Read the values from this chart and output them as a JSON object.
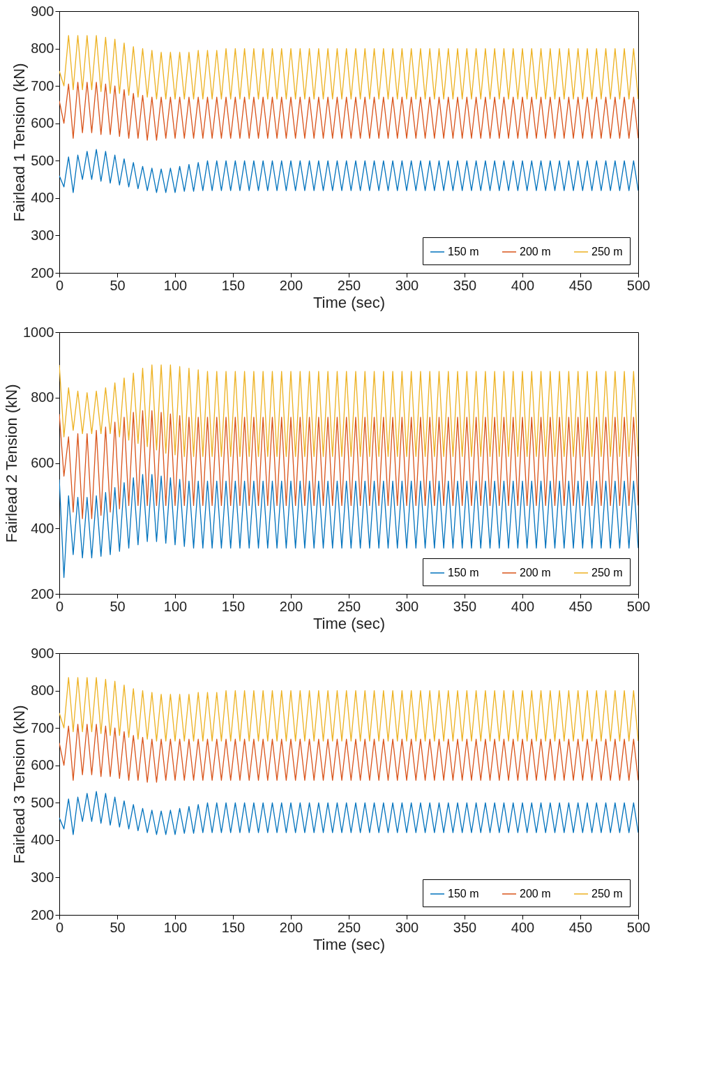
{
  "chart_data": [
    {
      "type": "line",
      "xlabel": "Time (sec)",
      "ylabel": "Fairlead 1 Tension (kN)",
      "xlim": [
        0,
        500
      ],
      "xticks": [
        0,
        50,
        100,
        150,
        200,
        250,
        300,
        350,
        400,
        450,
        500
      ],
      "ylim": [
        200,
        900
      ],
      "yticks": [
        200,
        300,
        400,
        500,
        600,
        700,
        800,
        900
      ],
      "grid": false,
      "legend": "bottom right",
      "x": [
        0,
        4,
        8,
        12,
        16,
        20,
        24,
        28,
        32,
        36,
        40,
        44,
        48,
        52,
        56,
        60,
        64,
        68,
        72,
        76,
        80,
        84,
        88,
        92,
        96,
        100,
        104,
        108,
        112,
        116,
        120,
        124,
        128,
        132,
        136,
        140,
        144,
        148,
        152,
        156,
        160,
        164,
        168,
        172,
        176,
        180,
        184,
        188,
        192,
        196,
        200,
        204,
        208,
        212,
        216,
        220,
        224,
        228,
        232,
        236,
        240,
        244,
        248,
        252,
        256,
        260,
        264,
        268,
        272,
        276,
        280,
        284,
        288,
        292,
        296,
        300,
        304,
        308,
        312,
        316,
        320,
        324,
        328,
        332,
        336,
        340,
        344,
        348,
        352,
        356,
        360,
        364,
        368,
        372,
        376,
        380,
        384,
        388,
        392,
        396,
        400,
        404,
        408,
        412,
        416,
        420,
        424,
        428,
        432,
        436,
        440,
        444,
        448,
        452,
        456,
        460,
        464,
        468,
        472,
        476,
        480,
        484,
        488,
        492,
        496,
        500
      ],
      "series": [
        {
          "name": "150 m",
          "color": "#0072bd",
          "values": [
            460,
            430,
            510,
            415,
            515,
            450,
            525,
            450,
            530,
            445,
            525,
            440,
            515,
            435,
            505,
            430,
            495,
            425,
            485,
            420,
            480,
            415,
            478,
            415,
            480,
            415,
            485,
            418,
            490,
            418,
            495,
            420,
            500,
            420,
            500,
            420,
            500,
            420,
            500,
            420,
            500,
            420,
            500,
            420,
            500,
            420,
            500,
            420,
            500,
            420,
            500,
            420,
            500,
            420,
            500,
            420,
            500,
            420,
            500,
            420,
            500,
            420,
            500,
            420,
            500,
            420,
            500,
            420,
            500,
            420,
            500,
            420,
            500,
            420,
            500,
            420,
            500,
            420,
            500,
            420,
            500,
            420,
            500,
            420,
            500,
            420,
            500,
            420,
            500,
            420,
            500,
            420,
            500,
            420,
            500,
            420,
            500,
            420,
            500,
            420,
            500,
            420,
            500,
            420,
            500,
            420,
            500,
            420,
            500,
            420,
            500,
            420,
            500,
            420,
            500,
            420,
            500,
            420,
            500,
            420,
            500,
            420,
            500,
            420,
            500,
            420
          ]
        },
        {
          "name": "200 m",
          "color": "#d95319",
          "values": [
            660,
            600,
            705,
            560,
            710,
            575,
            710,
            575,
            710,
            570,
            705,
            570,
            700,
            565,
            690,
            560,
            680,
            560,
            675,
            555,
            670,
            555,
            670,
            560,
            670,
            560,
            670,
            560,
            670,
            560,
            670,
            560,
            670,
            560,
            670,
            560,
            670,
            560,
            670,
            560,
            670,
            560,
            670,
            560,
            670,
            560,
            670,
            560,
            670,
            560,
            670,
            560,
            670,
            560,
            670,
            560,
            670,
            560,
            670,
            560,
            670,
            560,
            670,
            560,
            670,
            560,
            670,
            560,
            670,
            560,
            670,
            560,
            670,
            560,
            670,
            560,
            670,
            560,
            670,
            560,
            670,
            560,
            670,
            560,
            670,
            560,
            670,
            560,
            670,
            560,
            670,
            560,
            670,
            560,
            670,
            560,
            670,
            560,
            670,
            560,
            670,
            560,
            670,
            560,
            670,
            560,
            670,
            560,
            670,
            560,
            670,
            560,
            670,
            560,
            670,
            560,
            670,
            560,
            670,
            560,
            670,
            560,
            670,
            560,
            670,
            560
          ]
        },
        {
          "name": "250 m",
          "color": "#edb120",
          "values": [
            740,
            700,
            835,
            690,
            835,
            690,
            835,
            690,
            835,
            685,
            830,
            680,
            825,
            680,
            815,
            675,
            805,
            670,
            800,
            670,
            795,
            665,
            790,
            665,
            790,
            665,
            790,
            665,
            790,
            665,
            795,
            665,
            795,
            665,
            795,
            665,
            800,
            665,
            800,
            665,
            800,
            665,
            800,
            665,
            800,
            665,
            800,
            665,
            800,
            665,
            800,
            665,
            800,
            665,
            800,
            665,
            800,
            665,
            800,
            665,
            800,
            665,
            800,
            665,
            800,
            665,
            800,
            665,
            800,
            665,
            800,
            665,
            800,
            665,
            800,
            665,
            800,
            665,
            800,
            665,
            800,
            665,
            800,
            665,
            800,
            665,
            800,
            665,
            800,
            665,
            800,
            665,
            800,
            665,
            800,
            665,
            800,
            665,
            800,
            665,
            800,
            665,
            800,
            665,
            800,
            665,
            800,
            665,
            800,
            665,
            800,
            665,
            800,
            665,
            800,
            665,
            800,
            665,
            800,
            665,
            800,
            665,
            800,
            665,
            800,
            665
          ]
        }
      ]
    },
    {
      "type": "line",
      "xlabel": "Time (sec)",
      "ylabel": "Fairlead 2 Tension (kN)",
      "xlim": [
        0,
        500
      ],
      "xticks": [
        0,
        50,
        100,
        150,
        200,
        250,
        300,
        350,
        400,
        450,
        500
      ],
      "ylim": [
        200,
        1000
      ],
      "yticks": [
        200,
        400,
        600,
        800,
        1000
      ],
      "grid": false,
      "legend": "bottom right",
      "x": [
        0,
        4,
        8,
        12,
        16,
        20,
        24,
        28,
        32,
        36,
        40,
        44,
        48,
        52,
        56,
        60,
        64,
        68,
        72,
        76,
        80,
        84,
        88,
        92,
        96,
        100,
        104,
        108,
        112,
        116,
        120,
        124,
        128,
        132,
        136,
        140,
        144,
        148,
        152,
        156,
        160,
        164,
        168,
        172,
        176,
        180,
        184,
        188,
        192,
        196,
        200,
        204,
        208,
        212,
        216,
        220,
        224,
        228,
        232,
        236,
        240,
        244,
        248,
        252,
        256,
        260,
        264,
        268,
        272,
        276,
        280,
        284,
        288,
        292,
        296,
        300,
        304,
        308,
        312,
        316,
        320,
        324,
        328,
        332,
        336,
        340,
        344,
        348,
        352,
        356,
        360,
        364,
        368,
        372,
        376,
        380,
        384,
        388,
        392,
        396,
        400,
        404,
        408,
        412,
        416,
        420,
        424,
        428,
        432,
        436,
        440,
        444,
        448,
        452,
        456,
        460,
        464,
        468,
        472,
        476,
        480,
        484,
        488,
        492,
        496,
        500
      ],
      "series": [
        {
          "name": "150 m",
          "color": "#0072bd",
          "values": [
            550,
            250,
            500,
            320,
            495,
            310,
            495,
            310,
            500,
            315,
            510,
            320,
            525,
            330,
            540,
            340,
            555,
            350,
            565,
            360,
            565,
            360,
            560,
            355,
            555,
            350,
            550,
            345,
            545,
            340,
            545,
            340,
            545,
            340,
            545,
            340,
            545,
            340,
            545,
            340,
            545,
            340,
            545,
            340,
            545,
            340,
            545,
            340,
            545,
            340,
            545,
            340,
            545,
            340,
            545,
            340,
            545,
            340,
            545,
            340,
            545,
            340,
            545,
            340,
            545,
            340,
            545,
            340,
            545,
            340,
            545,
            340,
            545,
            340,
            545,
            340,
            545,
            340,
            545,
            340,
            545,
            340,
            545,
            340,
            545,
            340,
            545,
            340,
            545,
            340,
            545,
            340,
            545,
            340,
            545,
            340,
            545,
            340,
            545,
            340,
            545,
            340,
            545,
            340,
            545,
            340,
            545,
            340,
            545,
            340,
            545,
            340,
            545,
            340,
            545,
            340,
            545,
            340,
            545,
            340,
            545,
            340,
            545,
            340,
            545,
            340
          ]
        },
        {
          "name": "200 m",
          "color": "#d95319",
          "values": [
            750,
            560,
            680,
            450,
            690,
            430,
            690,
            430,
            700,
            440,
            710,
            450,
            725,
            460,
            740,
            470,
            755,
            470,
            760,
            470,
            760,
            470,
            755,
            470,
            750,
            470,
            745,
            470,
            740,
            470,
            740,
            470,
            740,
            470,
            740,
            470,
            740,
            470,
            740,
            470,
            740,
            470,
            740,
            470,
            740,
            470,
            740,
            470,
            740,
            470,
            740,
            470,
            740,
            470,
            740,
            470,
            740,
            470,
            740,
            470,
            740,
            470,
            740,
            470,
            740,
            470,
            740,
            470,
            740,
            470,
            740,
            470,
            740,
            470,
            740,
            470,
            740,
            470,
            740,
            470,
            740,
            470,
            740,
            470,
            740,
            470,
            740,
            470,
            740,
            470,
            740,
            470,
            740,
            470,
            740,
            470,
            740,
            470,
            740,
            470,
            740,
            470,
            740,
            470,
            740,
            470,
            740,
            470,
            740,
            470,
            740,
            470,
            740,
            470,
            740,
            470,
            740,
            470,
            740,
            470,
            740,
            470,
            740,
            470,
            740,
            470
          ]
        },
        {
          "name": "250 m",
          "color": "#edb120",
          "values": [
            900,
            680,
            830,
            700,
            820,
            690,
            815,
            690,
            820,
            690,
            830,
            690,
            845,
            680,
            860,
            670,
            875,
            660,
            890,
            650,
            900,
            640,
            900,
            630,
            900,
            625,
            895,
            620,
            890,
            620,
            885,
            620,
            880,
            620,
            880,
            620,
            880,
            620,
            880,
            620,
            880,
            620,
            880,
            620,
            880,
            620,
            880,
            620,
            880,
            620,
            880,
            620,
            880,
            620,
            880,
            620,
            880,
            620,
            880,
            620,
            880,
            620,
            880,
            620,
            880,
            620,
            880,
            620,
            880,
            620,
            880,
            620,
            880,
            620,
            880,
            620,
            880,
            620,
            880,
            620,
            880,
            620,
            880,
            620,
            880,
            620,
            880,
            620,
            880,
            620,
            880,
            620,
            880,
            620,
            880,
            620,
            880,
            620,
            880,
            620,
            880,
            620,
            880,
            620,
            880,
            620,
            880,
            620,
            880,
            620,
            880,
            620,
            880,
            620,
            880,
            620,
            880,
            620,
            880,
            620,
            880,
            620,
            880,
            620,
            880,
            620
          ]
        }
      ]
    },
    {
      "type": "line",
      "xlabel": "Time (sec)",
      "ylabel": "Fairlead 3 Tension (kN)",
      "xlim": [
        0,
        500
      ],
      "xticks": [
        0,
        50,
        100,
        150,
        200,
        250,
        300,
        350,
        400,
        450,
        500
      ],
      "ylim": [
        200,
        900
      ],
      "yticks": [
        200,
        300,
        400,
        500,
        600,
        700,
        800,
        900
      ],
      "grid": false,
      "legend": "bottom right",
      "x": [
        0,
        4,
        8,
        12,
        16,
        20,
        24,
        28,
        32,
        36,
        40,
        44,
        48,
        52,
        56,
        60,
        64,
        68,
        72,
        76,
        80,
        84,
        88,
        92,
        96,
        100,
        104,
        108,
        112,
        116,
        120,
        124,
        128,
        132,
        136,
        140,
        144,
        148,
        152,
        156,
        160,
        164,
        168,
        172,
        176,
        180,
        184,
        188,
        192,
        196,
        200,
        204,
        208,
        212,
        216,
        220,
        224,
        228,
        232,
        236,
        240,
        244,
        248,
        252,
        256,
        260,
        264,
        268,
        272,
        276,
        280,
        284,
        288,
        292,
        296,
        300,
        304,
        308,
        312,
        316,
        320,
        324,
        328,
        332,
        336,
        340,
        344,
        348,
        352,
        356,
        360,
        364,
        368,
        372,
        376,
        380,
        384,
        388,
        392,
        396,
        400,
        404,
        408,
        412,
        416,
        420,
        424,
        428,
        432,
        436,
        440,
        444,
        448,
        452,
        456,
        460,
        464,
        468,
        472,
        476,
        480,
        484,
        488,
        492,
        496,
        500
      ],
      "series": [
        {
          "name": "150 m",
          "color": "#0072bd",
          "values": [
            460,
            430,
            510,
            415,
            515,
            450,
            525,
            450,
            530,
            445,
            525,
            440,
            515,
            435,
            505,
            430,
            495,
            425,
            485,
            420,
            480,
            415,
            478,
            415,
            480,
            415,
            485,
            418,
            490,
            418,
            495,
            420,
            500,
            420,
            500,
            420,
            500,
            420,
            500,
            420,
            500,
            420,
            500,
            420,
            500,
            420,
            500,
            420,
            500,
            420,
            500,
            420,
            500,
            420,
            500,
            420,
            500,
            420,
            500,
            420,
            500,
            420,
            500,
            420,
            500,
            420,
            500,
            420,
            500,
            420,
            500,
            420,
            500,
            420,
            500,
            420,
            500,
            420,
            500,
            420,
            500,
            420,
            500,
            420,
            500,
            420,
            500,
            420,
            500,
            420,
            500,
            420,
            500,
            420,
            500,
            420,
            500,
            420,
            500,
            420,
            500,
            420,
            500,
            420,
            500,
            420,
            500,
            420,
            500,
            420,
            500,
            420,
            500,
            420,
            500,
            420,
            500,
            420,
            500,
            420,
            500,
            420,
            500,
            420,
            500,
            420
          ]
        },
        {
          "name": "200 m",
          "color": "#d95319",
          "values": [
            660,
            600,
            705,
            560,
            710,
            575,
            710,
            575,
            710,
            570,
            705,
            570,
            700,
            565,
            690,
            560,
            680,
            560,
            675,
            555,
            670,
            555,
            670,
            560,
            670,
            560,
            670,
            560,
            670,
            560,
            670,
            560,
            670,
            560,
            670,
            560,
            670,
            560,
            670,
            560,
            670,
            560,
            670,
            560,
            670,
            560,
            670,
            560,
            670,
            560,
            670,
            560,
            670,
            560,
            670,
            560,
            670,
            560,
            670,
            560,
            670,
            560,
            670,
            560,
            670,
            560,
            670,
            560,
            670,
            560,
            670,
            560,
            670,
            560,
            670,
            560,
            670,
            560,
            670,
            560,
            670,
            560,
            670,
            560,
            670,
            560,
            670,
            560,
            670,
            560,
            670,
            560,
            670,
            560,
            670,
            560,
            670,
            560,
            670,
            560,
            670,
            560,
            670,
            560,
            670,
            560,
            670,
            560,
            670,
            560,
            670,
            560,
            670,
            560,
            670,
            560,
            670,
            560,
            670,
            560,
            670,
            560,
            670,
            560,
            670,
            560
          ]
        },
        {
          "name": "250 m",
          "color": "#edb120",
          "values": [
            740,
            700,
            835,
            690,
            835,
            690,
            835,
            690,
            835,
            685,
            830,
            680,
            825,
            680,
            815,
            675,
            805,
            670,
            800,
            670,
            795,
            665,
            790,
            665,
            790,
            665,
            790,
            665,
            790,
            665,
            795,
            665,
            795,
            665,
            795,
            665,
            800,
            665,
            800,
            665,
            800,
            665,
            800,
            665,
            800,
            665,
            800,
            665,
            800,
            665,
            800,
            665,
            800,
            665,
            800,
            665,
            800,
            665,
            800,
            665,
            800,
            665,
            800,
            665,
            800,
            665,
            800,
            665,
            800,
            665,
            800,
            665,
            800,
            665,
            800,
            665,
            800,
            665,
            800,
            665,
            800,
            665,
            800,
            665,
            800,
            665,
            800,
            665,
            800,
            665,
            800,
            665,
            800,
            665,
            800,
            665,
            800,
            665,
            800,
            665,
            800,
            665,
            800,
            665,
            800,
            665,
            800,
            665,
            800,
            665,
            800,
            665,
            800,
            665,
            800,
            665,
            800,
            665,
            800,
            665,
            800,
            665,
            800,
            665,
            800,
            665
          ]
        }
      ]
    }
  ]
}
